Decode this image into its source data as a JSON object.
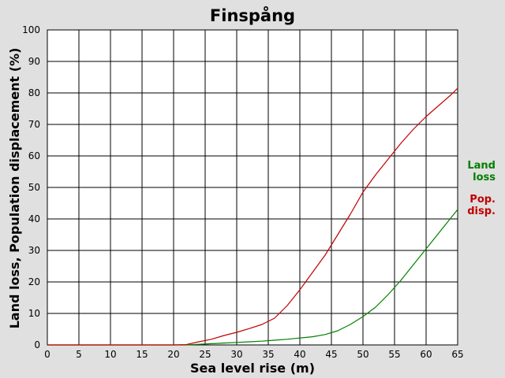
{
  "chart_data": {
    "type": "line",
    "title": "Finspång",
    "xlabel": "Sea level rise (m)",
    "ylabel": "Land loss, Population displacement (%)",
    "xlim": [
      0,
      65
    ],
    "ylim": [
      0,
      100
    ],
    "x_ticks": [
      "0",
      "5",
      "10",
      "15",
      "20",
      "25",
      "30",
      "35",
      "40",
      "45",
      "50",
      "55",
      "60",
      "65"
    ],
    "y_ticks": [
      "0",
      "10",
      "20",
      "30",
      "40",
      "50",
      "60",
      "70",
      "80",
      "90",
      "100"
    ],
    "grid": true,
    "legend_position": "right",
    "series": [
      {
        "name": "Land loss",
        "legend_lines": [
          "Land",
          "loss"
        ],
        "color": "#008000",
        "x": [
          0,
          20,
          22,
          24,
          26,
          28,
          30,
          32,
          34,
          36,
          38,
          40,
          42,
          44,
          46,
          48,
          50,
          52,
          54,
          56,
          58,
          60,
          62,
          64,
          65
        ],
        "y": [
          0,
          0,
          0,
          0.2,
          0.4,
          0.6,
          0.8,
          1.0,
          1.2,
          1.5,
          1.8,
          2.2,
          2.6,
          3.3,
          4.5,
          6.5,
          9.0,
          12.0,
          16.0,
          20.5,
          25.5,
          30.5,
          35.5,
          40.5,
          43.0
        ]
      },
      {
        "name": "Pop. disp.",
        "legend_lines": [
          "Pop.",
          "disp."
        ],
        "color": "#c00000",
        "x": [
          0,
          20,
          22,
          24,
          26,
          28,
          30,
          32,
          34,
          36,
          38,
          40,
          42,
          44,
          46,
          48,
          50,
          52,
          54,
          56,
          58,
          60,
          62,
          64,
          65
        ],
        "y": [
          0,
          0,
          0.1,
          1.0,
          1.8,
          3.0,
          4.0,
          5.2,
          6.5,
          8.5,
          12.5,
          17.5,
          23.0,
          28.5,
          35.0,
          41.5,
          48.5,
          54.0,
          59.0,
          64.0,
          68.5,
          72.5,
          76.0,
          79.5,
          81.5
        ]
      }
    ]
  }
}
